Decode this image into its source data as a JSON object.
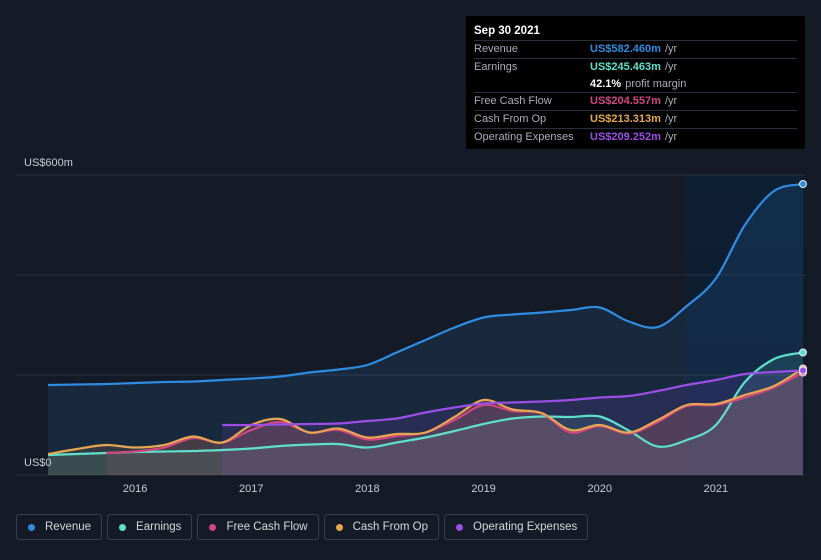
{
  "chart_data": {
    "type": "area",
    "y_axis": {
      "top_label": "US$600m",
      "bottom_label": "US$0",
      "ylim": [
        0,
        600
      ]
    },
    "x_axis": {
      "tick_labels": [
        "2016",
        "2017",
        "2018",
        "2019",
        "2020",
        "2021"
      ],
      "xlim": [
        2015.25,
        2021.75
      ]
    },
    "grid": true,
    "highlight_region_start": 2020.75,
    "series": [
      {
        "name": "Revenue",
        "color": "#2e8de3",
        "points": [
          [
            2015.25,
            180
          ],
          [
            2015.5,
            181
          ],
          [
            2015.75,
            182
          ],
          [
            2016.0,
            184
          ],
          [
            2016.25,
            186
          ],
          [
            2016.5,
            187
          ],
          [
            2016.75,
            190
          ],
          [
            2017.0,
            193
          ],
          [
            2017.25,
            197
          ],
          [
            2017.5,
            205
          ],
          [
            2017.75,
            211
          ],
          [
            2018.0,
            220
          ],
          [
            2018.25,
            245
          ],
          [
            2018.5,
            270
          ],
          [
            2018.75,
            295
          ],
          [
            2019.0,
            315
          ],
          [
            2019.25,
            321
          ],
          [
            2019.5,
            325
          ],
          [
            2019.75,
            330
          ],
          [
            2020.0,
            335
          ],
          [
            2020.25,
            307
          ],
          [
            2020.5,
            296
          ],
          [
            2020.75,
            338
          ],
          [
            2021.0,
            393
          ],
          [
            2021.25,
            500
          ],
          [
            2021.5,
            568
          ],
          [
            2021.75,
            582
          ]
        ]
      },
      {
        "name": "Earnings",
        "color": "#5fe0cc",
        "points": [
          [
            2015.25,
            40
          ],
          [
            2015.5,
            42
          ],
          [
            2015.75,
            44
          ],
          [
            2016.0,
            46
          ],
          [
            2016.25,
            47
          ],
          [
            2016.5,
            48
          ],
          [
            2016.75,
            50
          ],
          [
            2017.0,
            53
          ],
          [
            2017.25,
            58
          ],
          [
            2017.5,
            61
          ],
          [
            2017.75,
            62
          ],
          [
            2018.0,
            55
          ],
          [
            2018.25,
            65
          ],
          [
            2018.5,
            75
          ],
          [
            2018.75,
            88
          ],
          [
            2019.0,
            102
          ],
          [
            2019.25,
            113
          ],
          [
            2019.5,
            117
          ],
          [
            2019.75,
            116
          ],
          [
            2020.0,
            117
          ],
          [
            2020.25,
            89
          ],
          [
            2020.5,
            57
          ],
          [
            2020.75,
            70
          ],
          [
            2021.0,
            100
          ],
          [
            2021.25,
            186
          ],
          [
            2021.5,
            232
          ],
          [
            2021.75,
            245
          ]
        ]
      },
      {
        "name": "Free Cash Flow",
        "color": "#d1477f",
        "points": [
          [
            2015.75,
            44
          ],
          [
            2016.0,
            47
          ],
          [
            2016.25,
            55
          ],
          [
            2016.5,
            74
          ],
          [
            2016.75,
            65
          ],
          [
            2017.0,
            90
          ],
          [
            2017.25,
            106
          ],
          [
            2017.5,
            85
          ],
          [
            2017.75,
            90
          ],
          [
            2018.0,
            71
          ],
          [
            2018.25,
            78
          ],
          [
            2018.5,
            85
          ],
          [
            2018.75,
            110
          ],
          [
            2019.0,
            140
          ],
          [
            2019.25,
            128
          ],
          [
            2019.5,
            123
          ],
          [
            2019.75,
            85
          ],
          [
            2020.0,
            98
          ],
          [
            2020.25,
            83
          ],
          [
            2020.5,
            106
          ],
          [
            2020.75,
            138
          ],
          [
            2021.0,
            140
          ],
          [
            2021.25,
            155
          ],
          [
            2021.5,
            175
          ],
          [
            2021.75,
            205
          ]
        ]
      },
      {
        "name": "Cash From Op",
        "color": "#e8a752",
        "points": [
          [
            2015.25,
            42
          ],
          [
            2015.5,
            52
          ],
          [
            2015.75,
            60
          ],
          [
            2016.0,
            55
          ],
          [
            2016.25,
            60
          ],
          [
            2016.5,
            77
          ],
          [
            2016.75,
            65
          ],
          [
            2017.0,
            100
          ],
          [
            2017.25,
            112
          ],
          [
            2017.5,
            85
          ],
          [
            2017.75,
            93
          ],
          [
            2018.0,
            75
          ],
          [
            2018.25,
            82
          ],
          [
            2018.5,
            85
          ],
          [
            2018.75,
            116
          ],
          [
            2019.0,
            150
          ],
          [
            2019.25,
            131
          ],
          [
            2019.5,
            124
          ],
          [
            2019.75,
            90
          ],
          [
            2020.0,
            100
          ],
          [
            2020.25,
            85
          ],
          [
            2020.5,
            110
          ],
          [
            2020.75,
            140
          ],
          [
            2021.0,
            142
          ],
          [
            2021.25,
            160
          ],
          [
            2021.5,
            178
          ],
          [
            2021.75,
            213
          ]
        ]
      },
      {
        "name": "Operating Expenses",
        "color": "#9b4fe6",
        "points": [
          [
            2016.75,
            100
          ],
          [
            2017.0,
            100
          ],
          [
            2017.25,
            101
          ],
          [
            2017.5,
            102
          ],
          [
            2017.75,
            103
          ],
          [
            2018.0,
            108
          ],
          [
            2018.25,
            113
          ],
          [
            2018.5,
            125
          ],
          [
            2018.75,
            135
          ],
          [
            2019.0,
            143
          ],
          [
            2019.25,
            145
          ],
          [
            2019.5,
            147
          ],
          [
            2019.75,
            150
          ],
          [
            2020.0,
            155
          ],
          [
            2020.25,
            158
          ],
          [
            2020.5,
            168
          ],
          [
            2020.75,
            180
          ],
          [
            2021.0,
            190
          ],
          [
            2021.25,
            202
          ],
          [
            2021.5,
            206
          ],
          [
            2021.75,
            209
          ]
        ]
      }
    ]
  },
  "tooltip": {
    "date": "Sep 30 2021",
    "rows": [
      {
        "label": "Revenue",
        "value": "US$582.460m",
        "unit": "/yr",
        "color": "#2e8de3"
      },
      {
        "label": "Earnings",
        "value": "US$245.463m",
        "unit": "/yr",
        "color": "#5fe0cc"
      },
      {
        "label": "",
        "value": "42.1%",
        "unit": "profit margin",
        "color": "#ffffff",
        "sub": true
      },
      {
        "label": "Free Cash Flow",
        "value": "US$204.557m",
        "unit": "/yr",
        "color": "#d1477f"
      },
      {
        "label": "Cash From Op",
        "value": "US$213.313m",
        "unit": "/yr",
        "color": "#e8a752"
      },
      {
        "label": "Operating Expenses",
        "value": "US$209.252m",
        "unit": "/yr",
        "color": "#9b4fe6"
      }
    ]
  },
  "legend": [
    {
      "label": "Revenue",
      "color": "#2e8de3"
    },
    {
      "label": "Earnings",
      "color": "#5fe0cc"
    },
    {
      "label": "Free Cash Flow",
      "color": "#d1477f"
    },
    {
      "label": "Cash From Op",
      "color": "#e8a752"
    },
    {
      "label": "Operating Expenses",
      "color": "#9b4fe6"
    }
  ]
}
